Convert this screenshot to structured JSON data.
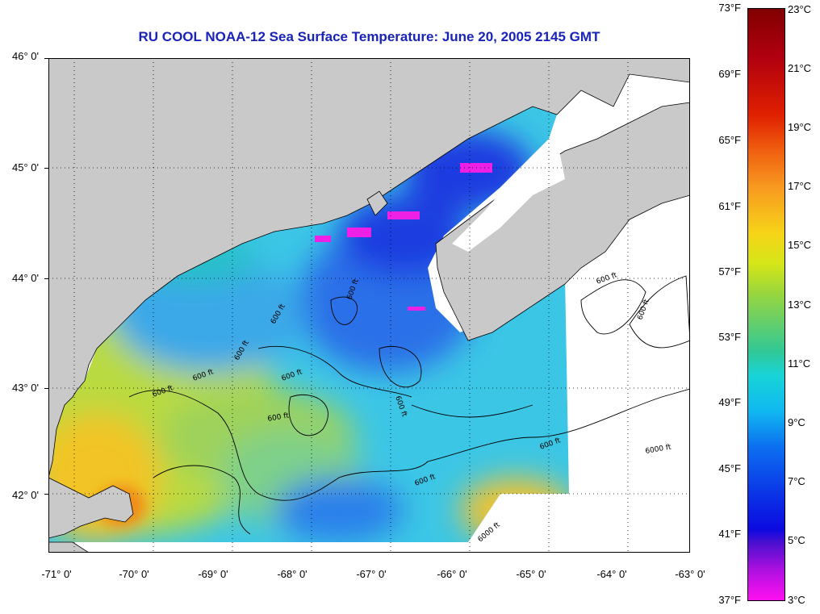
{
  "title": "RU COOL  NOAA-12  Sea Surface Temperature:  June 20, 2005 2145 GMT",
  "lat_labels": [
    "46° 0'",
    "45° 0'",
    "44° 0'",
    "43° 0'",
    "42° 0'"
  ],
  "lon_labels": [
    "-71° 0'",
    "-70° 0'",
    "-69° 0'",
    "-68° 0'",
    "-67° 0'",
    "-66° 0'",
    "-65° 0'",
    "-64° 0'",
    "-63° 0'"
  ],
  "colorbar": {
    "fahrenheit_labels": [
      "73°F",
      "69°F",
      "65°F",
      "61°F",
      "57°F",
      "53°F",
      "49°F",
      "45°F",
      "41°F",
      "37°F"
    ],
    "celsius_labels": [
      "23°C",
      "21°C",
      "19°C",
      "17°C",
      "15°C",
      "13°C",
      "11°C",
      "9°C",
      "7°C",
      "5°C",
      "3°C"
    ]
  },
  "contour_labels": [
    "600 ft",
    "600 ft",
    "600 ft",
    "600 ft",
    "600 ft",
    "600 ft",
    "600 ft",
    "600 ft",
    "600 ft",
    "600 ft",
    "600 ft",
    "600 ft",
    "6000 ft",
    "6000 ft"
  ],
  "colors": {
    "land": "#c9c9c9",
    "title": "#1a23b8",
    "water_warm": "#f0b020",
    "water_mid": "#9ed25a",
    "water_cool": "#3cc6e6",
    "water_cold": "#1640e0"
  }
}
